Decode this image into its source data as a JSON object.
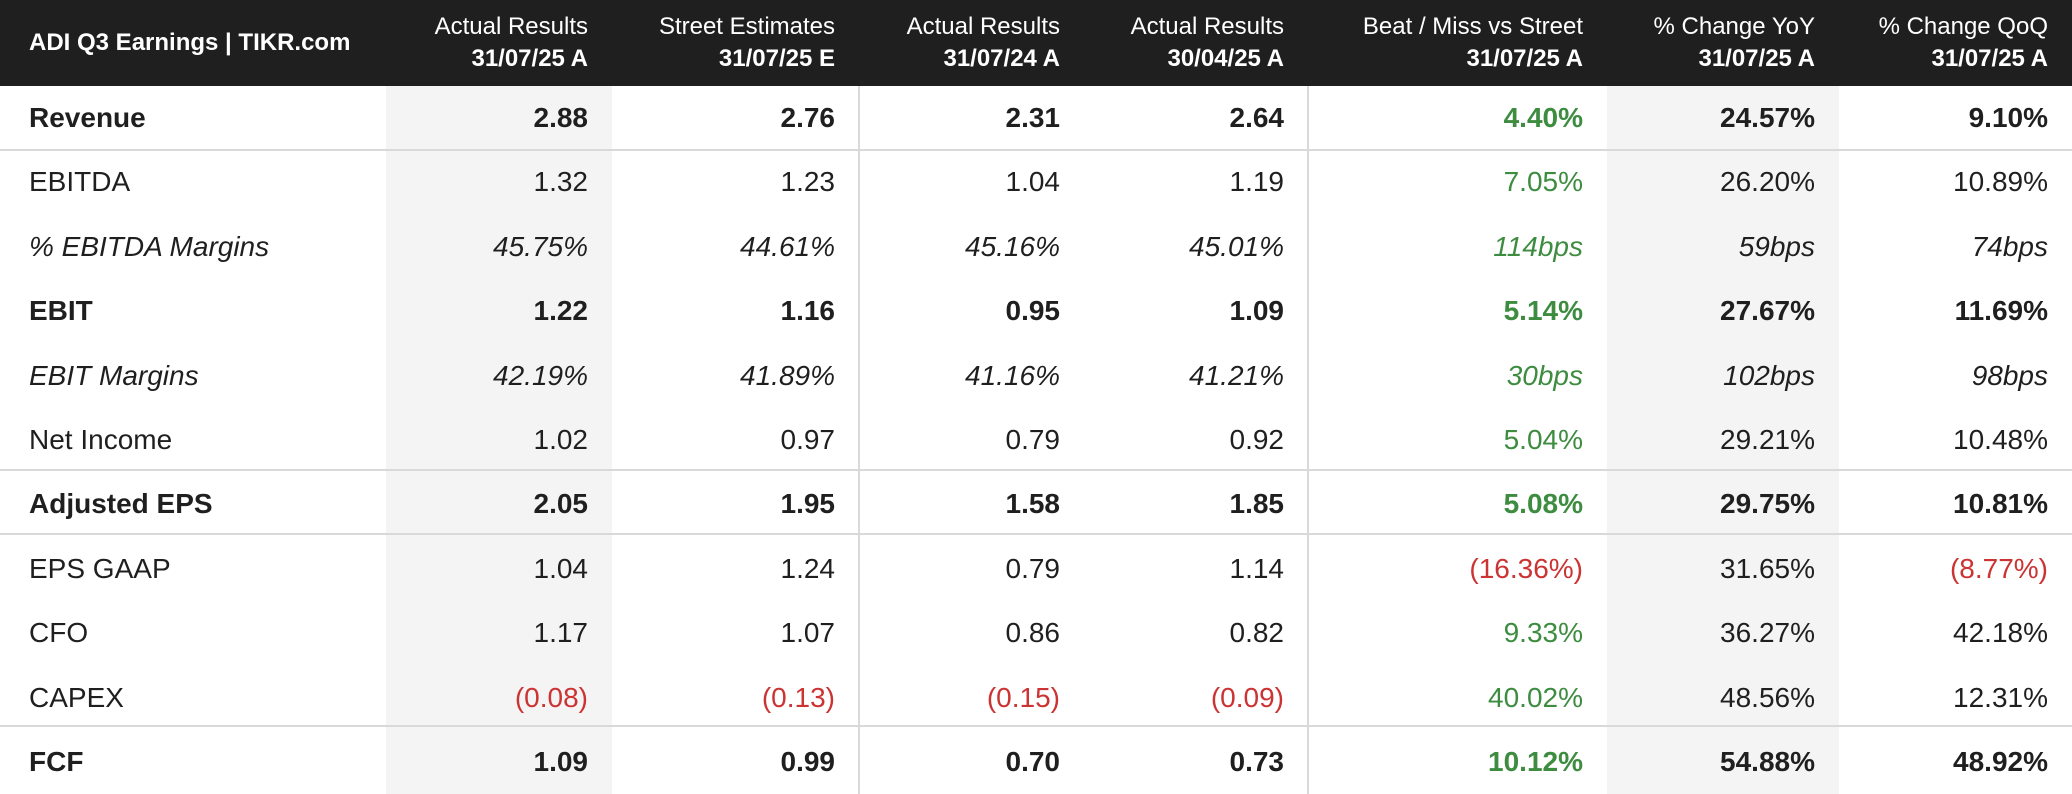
{
  "header": {
    "brand": "ADI Q3 Earnings | TIKR.com",
    "columns": [
      {
        "line1": "Actual Results",
        "line2": "31/07/25 A"
      },
      {
        "line1": "Street Estimates",
        "line2": "31/07/25 E"
      },
      {
        "line1": "Actual Results",
        "line2": "31/07/24 A"
      },
      {
        "line1": "Actual Results",
        "line2": "30/04/25 A"
      },
      {
        "line1": "Beat / Miss vs Street",
        "line2": "31/07/25 A"
      },
      {
        "line1": "% Change YoY",
        "line2": "31/07/25 A"
      },
      {
        "line1": "% Change QoQ",
        "line2": "31/07/25 A"
      }
    ]
  },
  "colors": {
    "header_bg": "#1f1f1f",
    "positive": "#3d8c40",
    "negative": "#cc3333",
    "shaded_column": "#f4f4f4"
  },
  "rows": [
    {
      "label": "Revenue",
      "style": "bold",
      "values": [
        "2.88",
        "2.76",
        "2.31",
        "2.64",
        "4.40%",
        "24.57%",
        "9.10%"
      ],
      "tones": [
        "",
        "",
        "",
        "",
        "pos",
        "",
        ""
      ]
    },
    {
      "label": "EBITDA",
      "style": "normal",
      "values": [
        "1.32",
        "1.23",
        "1.04",
        "1.19",
        "7.05%",
        "26.20%",
        "10.89%"
      ],
      "tones": [
        "",
        "",
        "",
        "",
        "pos",
        "",
        ""
      ]
    },
    {
      "label": "% EBITDA Margins",
      "style": "italic",
      "values": [
        "45.75%",
        "44.61%",
        "45.16%",
        "45.01%",
        "114bps",
        "59bps",
        "74bps"
      ],
      "tones": [
        "",
        "",
        "",
        "",
        "pos",
        "",
        ""
      ]
    },
    {
      "label": "EBIT",
      "style": "bold",
      "values": [
        "1.22",
        "1.16",
        "0.95",
        "1.09",
        "5.14%",
        "27.67%",
        "11.69%"
      ],
      "tones": [
        "",
        "",
        "",
        "",
        "pos",
        "",
        ""
      ]
    },
    {
      "label": "EBIT Margins",
      "style": "italic",
      "values": [
        "42.19%",
        "41.89%",
        "41.16%",
        "41.21%",
        "30bps",
        "102bps",
        "98bps"
      ],
      "tones": [
        "",
        "",
        "",
        "",
        "pos",
        "",
        ""
      ]
    },
    {
      "label": "Net Income",
      "style": "normal",
      "values": [
        "1.02",
        "0.97",
        "0.79",
        "0.92",
        "5.04%",
        "29.21%",
        "10.48%"
      ],
      "tones": [
        "",
        "",
        "",
        "",
        "pos",
        "",
        ""
      ]
    },
    {
      "label": "Adjusted EPS",
      "style": "bold",
      "values": [
        "2.05",
        "1.95",
        "1.58",
        "1.85",
        "5.08%",
        "29.75%",
        "10.81%"
      ],
      "tones": [
        "",
        "",
        "",
        "",
        "pos",
        "",
        ""
      ]
    },
    {
      "label": "EPS GAAP",
      "style": "normal",
      "values": [
        "1.04",
        "1.24",
        "0.79",
        "1.14",
        "(16.36%)",
        "31.65%",
        "(8.77%)"
      ],
      "tones": [
        "",
        "",
        "",
        "",
        "neg",
        "",
        "neg"
      ]
    },
    {
      "label": "CFO",
      "style": "normal",
      "values": [
        "1.17",
        "1.07",
        "0.86",
        "0.82",
        "9.33%",
        "36.27%",
        "42.18%"
      ],
      "tones": [
        "",
        "",
        "",
        "",
        "pos",
        "",
        ""
      ]
    },
    {
      "label": "CAPEX",
      "style": "normal",
      "values": [
        "(0.08)",
        "(0.13)",
        "(0.15)",
        "(0.09)",
        "40.02%",
        "48.56%",
        "12.31%"
      ],
      "tones": [
        "neg",
        "neg",
        "neg",
        "neg",
        "pos",
        "",
        ""
      ]
    },
    {
      "label": "FCF",
      "style": "bold",
      "values": [
        "1.09",
        "0.99",
        "0.70",
        "0.73",
        "10.12%",
        "54.88%",
        "48.92%"
      ],
      "tones": [
        "",
        "",
        "",
        "",
        "pos",
        "",
        ""
      ]
    }
  ]
}
